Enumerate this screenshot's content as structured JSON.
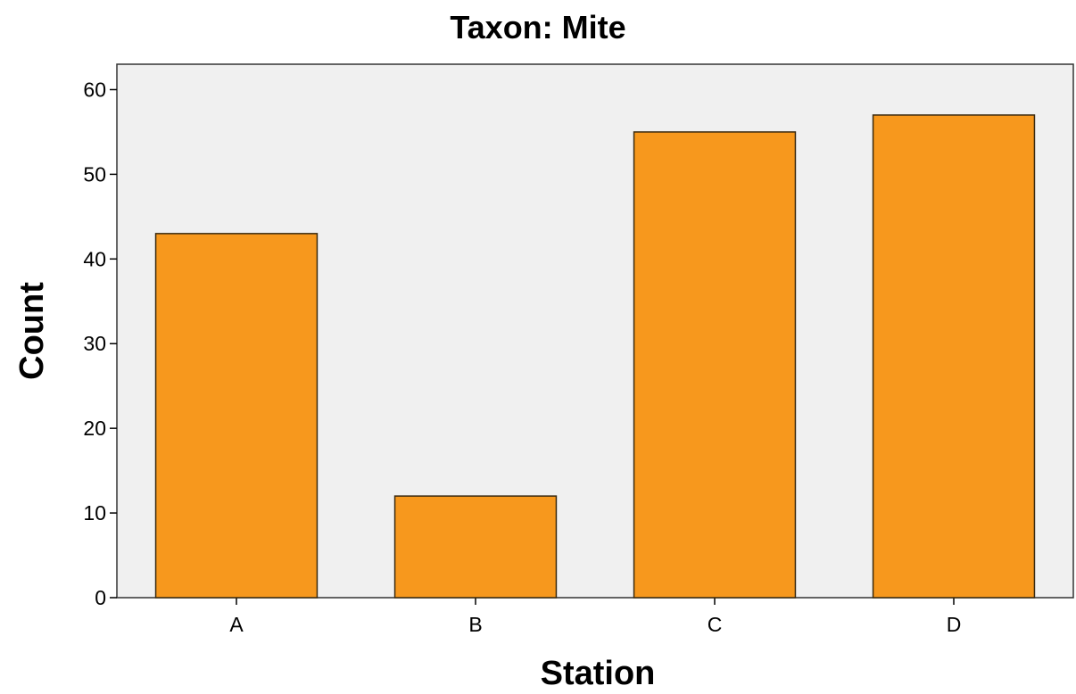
{
  "chart_data": {
    "type": "bar",
    "title": "Taxon: Mite",
    "xlabel": "Station",
    "ylabel": "Count",
    "categories": [
      "A",
      "B",
      "C",
      "D"
    ],
    "values": [
      43,
      12,
      55,
      57
    ],
    "ylim": [
      0,
      63
    ],
    "yticks": [
      0,
      10,
      20,
      30,
      40,
      50,
      60
    ],
    "grid": false,
    "colors": {
      "bar_fill": "#F7981D",
      "bar_stroke": "#3a2a10",
      "plot_background": "#F0F0F0",
      "frame": "#333333"
    }
  }
}
